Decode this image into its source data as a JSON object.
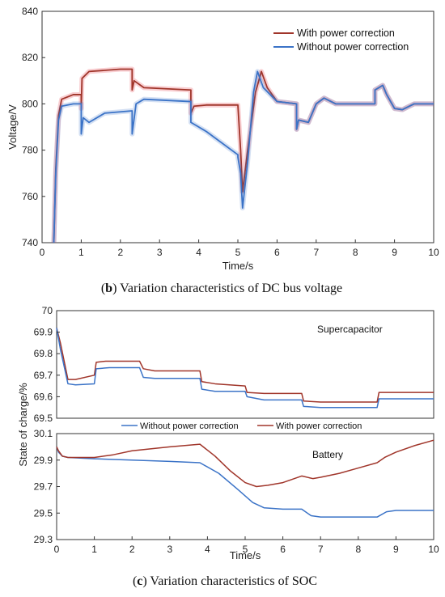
{
  "chart_data": [
    {
      "type": "line",
      "caption_letter": "b",
      "caption_text": " Variation characteristics of DC bus voltage",
      "xlabel": "Time/s",
      "ylabel": "Voltage/V",
      "xlim": [
        0,
        10
      ],
      "ylim": [
        740,
        840
      ],
      "xticks": [
        0,
        1,
        2,
        3,
        4,
        5,
        6,
        7,
        8,
        9,
        10
      ],
      "yticks": [
        740,
        760,
        780,
        800,
        820,
        840
      ],
      "legend": "top-right",
      "grid": false,
      "series": [
        {
          "name": "With power correction",
          "color": "#A0352A",
          "points": [
            [
              0.3,
              740
            ],
            [
              0.35,
              772
            ],
            [
              0.42,
              795
            ],
            [
              0.5,
              802
            ],
            [
              0.8,
              804
            ],
            [
              1.0,
              804
            ],
            [
              1.0,
              798
            ],
            [
              1.02,
              811
            ],
            [
              1.2,
              814
            ],
            [
              2.0,
              815
            ],
            [
              2.3,
              815
            ],
            [
              2.3,
              806
            ],
            [
              2.35,
              810
            ],
            [
              2.6,
              807
            ],
            [
              3.8,
              806
            ],
            [
              3.8,
              796
            ],
            [
              3.88,
              799
            ],
            [
              4.2,
              799.5
            ],
            [
              5.0,
              799.5
            ],
            [
              5.07,
              780
            ],
            [
              5.12,
              762
            ],
            [
              5.25,
              780
            ],
            [
              5.45,
              805
            ],
            [
              5.6,
              814
            ],
            [
              5.75,
              807
            ],
            [
              6.0,
              801
            ],
            [
              6.5,
              800
            ],
            [
              6.5,
              789
            ],
            [
              6.55,
              793
            ],
            [
              6.8,
              792
            ],
            [
              7.0,
              800
            ],
            [
              7.2,
              802.5
            ],
            [
              7.5,
              800
            ],
            [
              8.5,
              800
            ],
            [
              8.5,
              806
            ],
            [
              8.7,
              808
            ],
            [
              8.8,
              804
            ],
            [
              9.0,
              798
            ],
            [
              9.2,
              797.5
            ],
            [
              9.5,
              800
            ],
            [
              10.0,
              800
            ]
          ]
        },
        {
          "name": "Without power correction",
          "color": "#3B73C7",
          "points": [
            [
              0.3,
              740
            ],
            [
              0.35,
              770
            ],
            [
              0.42,
              793
            ],
            [
              0.5,
              799
            ],
            [
              0.8,
              800
            ],
            [
              1.0,
              800
            ],
            [
              1.0,
              787
            ],
            [
              1.05,
              794
            ],
            [
              1.2,
              792
            ],
            [
              1.6,
              796
            ],
            [
              2.3,
              797
            ],
            [
              2.3,
              787
            ],
            [
              2.4,
              800
            ],
            [
              2.6,
              802
            ],
            [
              3.8,
              801
            ],
            [
              3.8,
              792
            ],
            [
              4.2,
              788
            ],
            [
              5.0,
              778
            ],
            [
              5.0,
              777
            ],
            [
              5.07,
              770
            ],
            [
              5.12,
              755
            ],
            [
              5.25,
              775
            ],
            [
              5.4,
              805
            ],
            [
              5.5,
              814
            ],
            [
              5.65,
              807
            ],
            [
              6.0,
              801
            ],
            [
              6.5,
              800
            ],
            [
              6.5,
              789
            ],
            [
              6.55,
              793
            ],
            [
              6.8,
              792
            ],
            [
              7.0,
              800
            ],
            [
              7.2,
              802.5
            ],
            [
              7.5,
              800
            ],
            [
              8.5,
              800
            ],
            [
              8.5,
              806
            ],
            [
              8.7,
              808
            ],
            [
              8.8,
              804
            ],
            [
              9.0,
              798
            ],
            [
              9.2,
              797.5
            ],
            [
              9.5,
              800
            ],
            [
              10.0,
              800
            ]
          ]
        }
      ]
    },
    {
      "type": "line",
      "title": "Supercapacitor",
      "ylabel": "State of charge/%",
      "xlim": [
        0,
        10
      ],
      "ylim": [
        69.5,
        70
      ],
      "yticks": [
        69.5,
        69.6,
        69.7,
        69.8,
        69.9,
        70
      ],
      "series": [
        {
          "name": "With power correction",
          "color": "#A0352A",
          "points": [
            [
              0,
              69.92
            ],
            [
              0.1,
              69.85
            ],
            [
              0.3,
              69.68
            ],
            [
              0.5,
              69.68
            ],
            [
              1.0,
              69.7
            ],
            [
              1.05,
              69.76
            ],
            [
              1.3,
              69.765
            ],
            [
              2.2,
              69.765
            ],
            [
              2.3,
              69.73
            ],
            [
              2.6,
              69.72
            ],
            [
              3.8,
              69.72
            ],
            [
              3.85,
              69.67
            ],
            [
              4.2,
              69.66
            ],
            [
              5.0,
              69.65
            ],
            [
              5.05,
              69.62
            ],
            [
              5.5,
              69.615
            ],
            [
              6.5,
              69.615
            ],
            [
              6.55,
              69.58
            ],
            [
              7.0,
              69.575
            ],
            [
              8.5,
              69.575
            ],
            [
              8.55,
              69.62
            ],
            [
              10.0,
              69.62
            ]
          ]
        },
        {
          "name": "Without power correction",
          "color": "#3B73C7",
          "points": [
            [
              0,
              69.92
            ],
            [
              0.1,
              69.82
            ],
            [
              0.3,
              69.66
            ],
            [
              0.5,
              69.655
            ],
            [
              1.0,
              69.66
            ],
            [
              1.05,
              69.73
            ],
            [
              1.4,
              69.735
            ],
            [
              2.2,
              69.735
            ],
            [
              2.3,
              69.69
            ],
            [
              2.6,
              69.685
            ],
            [
              3.8,
              69.685
            ],
            [
              3.85,
              69.635
            ],
            [
              4.2,
              69.625
            ],
            [
              5.0,
              69.625
            ],
            [
              5.05,
              69.6
            ],
            [
              5.5,
              69.585
            ],
            [
              6.5,
              69.585
            ],
            [
              6.55,
              69.555
            ],
            [
              7.0,
              69.55
            ],
            [
              8.5,
              69.55
            ],
            [
              8.55,
              69.59
            ],
            [
              10.0,
              69.59
            ]
          ]
        }
      ]
    },
    {
      "type": "line",
      "caption_letter": "c",
      "caption_text": " Variation characteristics of SOC",
      "title": "Battery",
      "xlabel": "Time/s",
      "xlim": [
        0,
        10
      ],
      "ylim": [
        29.3,
        30.1
      ],
      "xticks": [
        0,
        1,
        2,
        3,
        4,
        5,
        6,
        7,
        8,
        9,
        10
      ],
      "yticks": [
        29.3,
        29.5,
        29.7,
        29.9,
        30.1
      ],
      "legend": "top",
      "series": [
        {
          "name": "Without power correction",
          "color": "#3B73C7",
          "points": [
            [
              0,
              30.0
            ],
            [
              0.05,
              29.96
            ],
            [
              0.15,
              29.93
            ],
            [
              0.3,
              29.92
            ],
            [
              1.0,
              29.91
            ],
            [
              2.0,
              29.9
            ],
            [
              3.0,
              29.89
            ],
            [
              3.8,
              29.88
            ],
            [
              4.3,
              29.8
            ],
            [
              4.8,
              29.68
            ],
            [
              5.2,
              29.58
            ],
            [
              5.5,
              29.54
            ],
            [
              6.0,
              29.53
            ],
            [
              6.5,
              29.53
            ],
            [
              6.75,
              29.48
            ],
            [
              7.0,
              29.47
            ],
            [
              8.5,
              29.47
            ],
            [
              8.75,
              29.51
            ],
            [
              9.0,
              29.52
            ],
            [
              10.0,
              29.52
            ]
          ]
        },
        {
          "name": "With power correction",
          "color": "#A0352A",
          "points": [
            [
              0,
              30.0
            ],
            [
              0.05,
              29.97
            ],
            [
              0.15,
              29.93
            ],
            [
              0.3,
              29.92
            ],
            [
              1.0,
              29.92
            ],
            [
              1.5,
              29.94
            ],
            [
              2.0,
              29.97
            ],
            [
              3.0,
              30.0
            ],
            [
              3.8,
              30.02
            ],
            [
              4.2,
              29.93
            ],
            [
              4.6,
              29.82
            ],
            [
              5.0,
              29.73
            ],
            [
              5.3,
              29.7
            ],
            [
              5.6,
              29.71
            ],
            [
              6.0,
              29.73
            ],
            [
              6.5,
              29.78
            ],
            [
              6.8,
              29.76
            ],
            [
              7.0,
              29.77
            ],
            [
              7.5,
              29.8
            ],
            [
              8.0,
              29.84
            ],
            [
              8.5,
              29.88
            ],
            [
              8.7,
              29.92
            ],
            [
              9.0,
              29.96
            ],
            [
              9.5,
              30.01
            ],
            [
              10.0,
              30.05
            ]
          ]
        }
      ]
    }
  ]
}
